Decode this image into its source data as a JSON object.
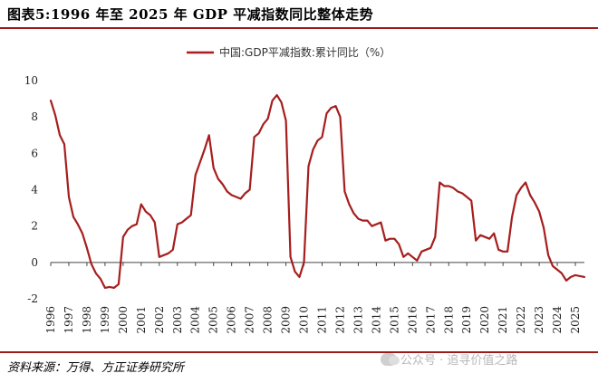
{
  "page": {
    "title": "图表5:1996 年至 2025 年 GDP 平减指数同比整体走势",
    "source": "资料来源：万得、方正证券研究所",
    "watermark": "公众号 · 追寻价值之路"
  },
  "chart_data": {
    "type": "line",
    "title": "",
    "xlabel": "",
    "ylabel": "",
    "ylim": [
      -2,
      10
    ],
    "yticks": [
      -2,
      0,
      2,
      4,
      6,
      8,
      10
    ],
    "xticks": [
      "1996",
      "1997",
      "1998",
      "1999",
      "2000",
      "2001",
      "2002",
      "2003",
      "2004",
      "2005",
      "2006",
      "2007",
      "2008",
      "2009",
      "2010",
      "2011",
      "2012",
      "2013",
      "2014",
      "2015",
      "2016",
      "2017",
      "2018",
      "2019",
      "2020",
      "2021",
      "2022",
      "2023",
      "2024",
      "2025"
    ],
    "legend": "top-center",
    "grid": false,
    "line_color": "#a61e1e",
    "series": [
      {
        "name": "中国:GDP平减指数:累计同比（%）",
        "points": [
          [
            1996.0,
            8.9
          ],
          [
            1996.25,
            8.1
          ],
          [
            1996.5,
            7.0
          ],
          [
            1996.75,
            6.5
          ],
          [
            1997.0,
            3.6
          ],
          [
            1997.25,
            2.5
          ],
          [
            1997.5,
            2.1
          ],
          [
            1997.75,
            1.6
          ],
          [
            1998.0,
            0.8
          ],
          [
            1998.25,
            -0.1
          ],
          [
            1998.5,
            -0.6
          ],
          [
            1998.75,
            -0.9
          ],
          [
            1999.0,
            -1.4
          ],
          [
            1999.25,
            -1.35
          ],
          [
            1999.5,
            -1.4
          ],
          [
            1999.75,
            -1.2
          ],
          [
            2000.0,
            1.4
          ],
          [
            2000.25,
            1.8
          ],
          [
            2000.5,
            2.0
          ],
          [
            2000.75,
            2.1
          ],
          [
            2001.0,
            3.2
          ],
          [
            2001.25,
            2.8
          ],
          [
            2001.5,
            2.6
          ],
          [
            2001.75,
            2.2
          ],
          [
            2002.0,
            0.3
          ],
          [
            2002.25,
            0.4
          ],
          [
            2002.5,
            0.5
          ],
          [
            2002.75,
            0.7
          ],
          [
            2003.0,
            2.1
          ],
          [
            2003.25,
            2.2
          ],
          [
            2003.5,
            2.4
          ],
          [
            2003.75,
            2.6
          ],
          [
            2004.0,
            4.8
          ],
          [
            2004.25,
            5.5
          ],
          [
            2004.5,
            6.2
          ],
          [
            2004.75,
            7.0
          ],
          [
            2005.0,
            5.2
          ],
          [
            2005.25,
            4.6
          ],
          [
            2005.5,
            4.3
          ],
          [
            2005.75,
            3.9
          ],
          [
            2006.0,
            3.7
          ],
          [
            2006.25,
            3.6
          ],
          [
            2006.5,
            3.5
          ],
          [
            2006.75,
            3.8
          ],
          [
            2007.0,
            4.0
          ],
          [
            2007.25,
            6.9
          ],
          [
            2007.5,
            7.1
          ],
          [
            2007.75,
            7.6
          ],
          [
            2008.0,
            7.9
          ],
          [
            2008.25,
            8.9
          ],
          [
            2008.5,
            9.2
          ],
          [
            2008.75,
            8.8
          ],
          [
            2009.0,
            7.8
          ],
          [
            2009.25,
            0.3
          ],
          [
            2009.5,
            -0.5
          ],
          [
            2009.75,
            -0.8
          ],
          [
            2010.0,
            0.0
          ],
          [
            2010.25,
            5.3
          ],
          [
            2010.5,
            6.2
          ],
          [
            2010.75,
            6.7
          ],
          [
            2011.0,
            6.9
          ],
          [
            2011.25,
            8.2
          ],
          [
            2011.5,
            8.5
          ],
          [
            2011.75,
            8.6
          ],
          [
            2012.0,
            8.0
          ],
          [
            2012.25,
            3.9
          ],
          [
            2012.5,
            3.2
          ],
          [
            2012.75,
            2.7
          ],
          [
            2013.0,
            2.4
          ],
          [
            2013.25,
            2.3
          ],
          [
            2013.5,
            2.3
          ],
          [
            2013.75,
            2.0
          ],
          [
            2014.0,
            2.1
          ],
          [
            2014.25,
            2.2
          ],
          [
            2014.5,
            1.2
          ],
          [
            2014.75,
            1.3
          ],
          [
            2015.0,
            1.3
          ],
          [
            2015.25,
            1.0
          ],
          [
            2015.5,
            0.3
          ],
          [
            2015.75,
            0.5
          ],
          [
            2016.0,
            0.3
          ],
          [
            2016.25,
            0.1
          ],
          [
            2016.5,
            0.6
          ],
          [
            2016.75,
            0.7
          ],
          [
            2017.0,
            0.8
          ],
          [
            2017.25,
            1.4
          ],
          [
            2017.5,
            4.4
          ],
          [
            2017.75,
            4.2
          ],
          [
            2018.0,
            4.2
          ],
          [
            2018.25,
            4.1
          ],
          [
            2018.5,
            3.9
          ],
          [
            2018.75,
            3.8
          ],
          [
            2019.0,
            3.6
          ],
          [
            2019.25,
            3.4
          ],
          [
            2019.5,
            1.2
          ],
          [
            2019.75,
            1.5
          ],
          [
            2020.0,
            1.4
          ],
          [
            2020.25,
            1.3
          ],
          [
            2020.5,
            1.6
          ],
          [
            2020.75,
            0.7
          ],
          [
            2021.0,
            0.6
          ],
          [
            2021.25,
            0.6
          ],
          [
            2021.5,
            2.5
          ],
          [
            2021.75,
            3.7
          ],
          [
            2022.0,
            4.1
          ],
          [
            2022.25,
            4.4
          ],
          [
            2022.5,
            3.7
          ],
          [
            2022.75,
            3.3
          ],
          [
            2023.0,
            2.8
          ],
          [
            2023.25,
            1.9
          ],
          [
            2023.5,
            0.4
          ],
          [
            2023.75,
            -0.2
          ],
          [
            2024.0,
            -0.4
          ],
          [
            2024.25,
            -0.6
          ],
          [
            2024.5,
            -1.0
          ],
          [
            2024.75,
            -0.8
          ],
          [
            2025.0,
            -0.7
          ],
          [
            2025.25,
            -0.75
          ],
          [
            2025.5,
            -0.8
          ]
        ]
      }
    ]
  }
}
